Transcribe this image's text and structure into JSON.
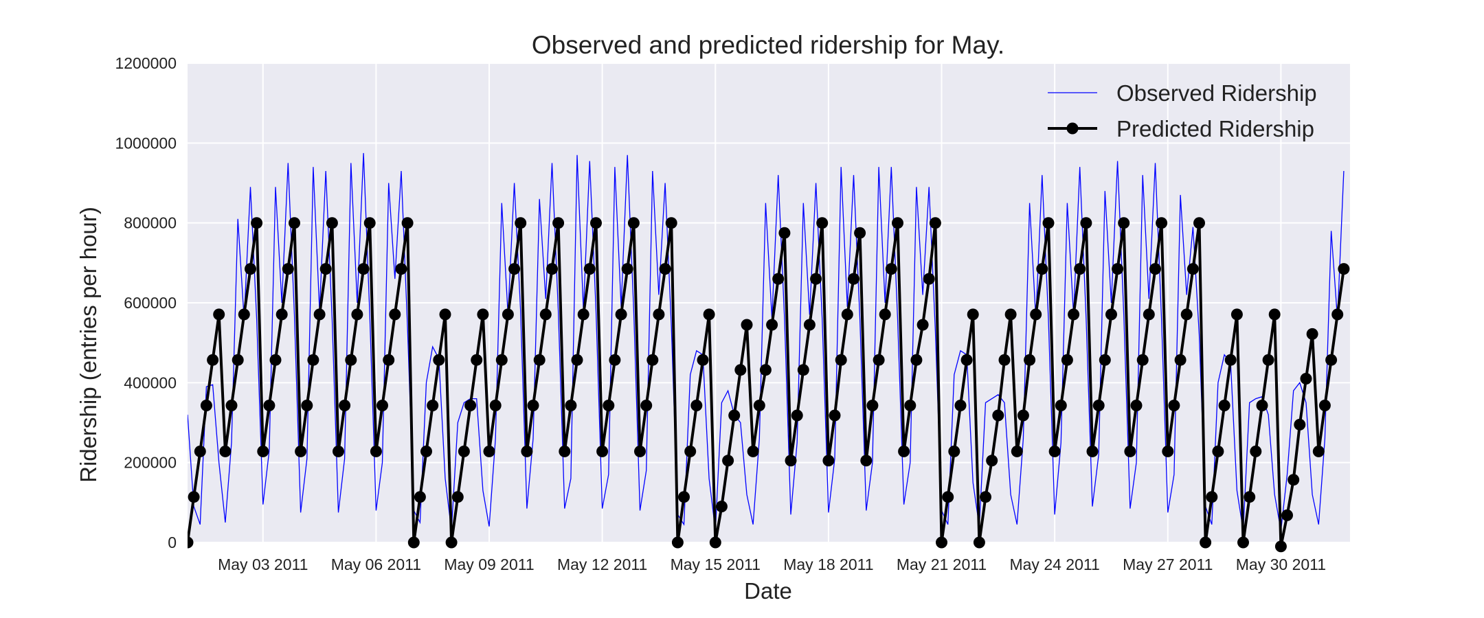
{
  "chart_data": {
    "type": "line",
    "title": "Observed and predicted ridership for May.",
    "xlabel": "Date",
    "ylabel": "Ridership (entries per hour)",
    "xlim": [
      "2011-05-01 00:00",
      "2011-05-31 20:00"
    ],
    "ylim": [
      0,
      1200000
    ],
    "x_ticks": [
      "May 03 2011",
      "May 06 2011",
      "May 09 2011",
      "May 12 2011",
      "May 15 2011",
      "May 18 2011",
      "May 21 2011",
      "May 24 2011",
      "May 27 2011",
      "May 30 2011"
    ],
    "y_ticks": [
      "0",
      "200000",
      "400000",
      "600000",
      "800000",
      "1000000",
      "1200000"
    ],
    "grid": true,
    "legend_position": "top-right",
    "colors": {
      "observed": "#0000ff",
      "predicted": "#000000",
      "plot_background": "#eaeaf2",
      "grid": "#ffffff"
    },
    "sampling": "every 4 hours, starting 2011-05-01 00:00",
    "predicted_profiles": {
      "weekday": [
        228000,
        343000,
        457000,
        571000,
        685000,
        800000
      ],
      "weekend": [
        0,
        114000,
        228000,
        343000,
        457000,
        571000
      ]
    },
    "series": [
      {
        "name": "Observed Ridership",
        "days": [
          {
            "date": "2011-05-01",
            "values": [
              320000,
              90000,
              45000,
              390000,
              395000,
              200000
            ]
          },
          {
            "date": "2011-05-02",
            "values": [
              50000,
              250000,
              810000,
              560000,
              890000,
              560000
            ]
          },
          {
            "date": "2011-05-03",
            "values": [
              95000,
              230000,
              890000,
              600000,
              950000,
              570000
            ]
          },
          {
            "date": "2011-05-04",
            "values": [
              75000,
              210000,
              940000,
              580000,
              930000,
              560000
            ]
          },
          {
            "date": "2011-05-05",
            "values": [
              75000,
              210000,
              950000,
              600000,
              975000,
              570000
            ]
          },
          {
            "date": "2011-05-06",
            "values": [
              80000,
              200000,
              900000,
              660000,
              930000,
              540000
            ]
          },
          {
            "date": "2011-05-07",
            "values": [
              80000,
              50000,
              400000,
              490000,
              460000,
              160000
            ]
          },
          {
            "date": "2011-05-08",
            "values": [
              30000,
              300000,
              350000,
              360000,
              360000,
              130000
            ]
          },
          {
            "date": "2011-05-09",
            "values": [
              40000,
              260000,
              850000,
              570000,
              900000,
              580000
            ]
          },
          {
            "date": "2011-05-10",
            "values": [
              85000,
              260000,
              860000,
              610000,
              950000,
              580000
            ]
          },
          {
            "date": "2011-05-11",
            "values": [
              85000,
              160000,
              970000,
              580000,
              955000,
              580000
            ]
          },
          {
            "date": "2011-05-12",
            "values": [
              85000,
              170000,
              940000,
              590000,
              970000,
              580000
            ]
          },
          {
            "date": "2011-05-13",
            "values": [
              80000,
              180000,
              930000,
              620000,
              900000,
              540000
            ]
          },
          {
            "date": "2011-05-14",
            "values": [
              70000,
              45000,
              420000,
              480000,
              470000,
              160000
            ]
          },
          {
            "date": "2011-05-15",
            "values": [
              30000,
              350000,
              380000,
              320000,
              300000,
              120000
            ]
          },
          {
            "date": "2011-05-16",
            "values": [
              45000,
              260000,
              850000,
              560000,
              920000,
              560000
            ]
          },
          {
            "date": "2011-05-17",
            "values": [
              70000,
              250000,
              850000,
              570000,
              900000,
              560000
            ]
          },
          {
            "date": "2011-05-18",
            "values": [
              75000,
              210000,
              940000,
              590000,
              920000,
              560000
            ]
          },
          {
            "date": "2011-05-19",
            "values": [
              80000,
              200000,
              940000,
              600000,
              940000,
              560000
            ]
          },
          {
            "date": "2011-05-20",
            "values": [
              95000,
              200000,
              890000,
              620000,
              890000,
              530000
            ]
          },
          {
            "date": "2011-05-21",
            "values": [
              80000,
              45000,
              420000,
              480000,
              470000,
              150000
            ]
          },
          {
            "date": "2011-05-22",
            "values": [
              40000,
              350000,
              360000,
              370000,
              350000,
              120000
            ]
          },
          {
            "date": "2011-05-23",
            "values": [
              45000,
              260000,
              850000,
              560000,
              920000,
              560000
            ]
          },
          {
            "date": "2011-05-24",
            "values": [
              70000,
              250000,
              850000,
              570000,
              940000,
              560000
            ]
          },
          {
            "date": "2011-05-25",
            "values": [
              90000,
              220000,
              880000,
              600000,
              955000,
              570000
            ]
          },
          {
            "date": "2011-05-26",
            "values": [
              85000,
              200000,
              920000,
              610000,
              950000,
              560000
            ]
          },
          {
            "date": "2011-05-27",
            "values": [
              75000,
              170000,
              870000,
              620000,
              790000,
              520000
            ]
          },
          {
            "date": "2011-05-28",
            "values": [
              90000,
              45000,
              400000,
              470000,
              450000,
              130000
            ]
          },
          {
            "date": "2011-05-29",
            "values": [
              30000,
              350000,
              360000,
              365000,
              320000,
              120000
            ]
          },
          {
            "date": "2011-05-30",
            "values": [
              30000,
              170000,
              380000,
              400000,
              350000,
              120000
            ]
          },
          {
            "date": "2011-05-31",
            "values": [
              45000,
              260000,
              780000,
              560000,
              930000
            ]
          }
        ]
      },
      {
        "name": "Predicted Ridership",
        "day_profiles": [
          "weekend",
          "weekday",
          "weekday",
          "weekday",
          "weekday",
          "weekday",
          "weekend",
          "weekend",
          "weekday",
          "weekday",
          "weekday",
          "weekday",
          "weekday",
          "weekend",
          "weekend",
          "weekday",
          "weekday",
          "weekday",
          "weekday",
          "weekday",
          "weekend",
          "weekend",
          "weekday",
          "weekday",
          "weekday",
          "weekday",
          "weekday",
          "weekend",
          "weekend",
          "weekend",
          "weekday"
        ],
        "overrides": [
          {
            "date": "2011-05-15",
            "values": [
              0,
              90000,
              205000,
              318000,
              432000,
              545000
            ]
          },
          {
            "date": "2011-05-16",
            "values": [
              228000,
              343000,
              432000,
              545000,
              660000,
              775000
            ]
          },
          {
            "date": "2011-05-17",
            "values": [
              205000,
              318000,
              432000,
              545000,
              660000,
              800000
            ]
          },
          {
            "date": "2011-05-18",
            "values": [
              205000,
              318000,
              457000,
              571000,
              660000,
              775000
            ]
          },
          {
            "date": "2011-05-19",
            "values": [
              205000,
              343000,
              457000,
              571000,
              685000,
              800000
            ]
          },
          {
            "date": "2011-05-20",
            "values": [
              228000,
              343000,
              457000,
              545000,
              660000,
              800000
            ]
          },
          {
            "date": "2011-05-22",
            "values": [
              0,
              114000,
              205000,
              318000,
              457000,
              571000
            ]
          },
          {
            "date": "2011-05-23",
            "values": [
              228000,
              318000,
              457000,
              571000,
              685000,
              800000
            ]
          },
          {
            "date": "2011-05-30",
            "values": [
              -10000,
              68000,
              157000,
              295000,
              410000,
              522000
            ]
          }
        ],
        "last_day_points": 5
      }
    ]
  }
}
